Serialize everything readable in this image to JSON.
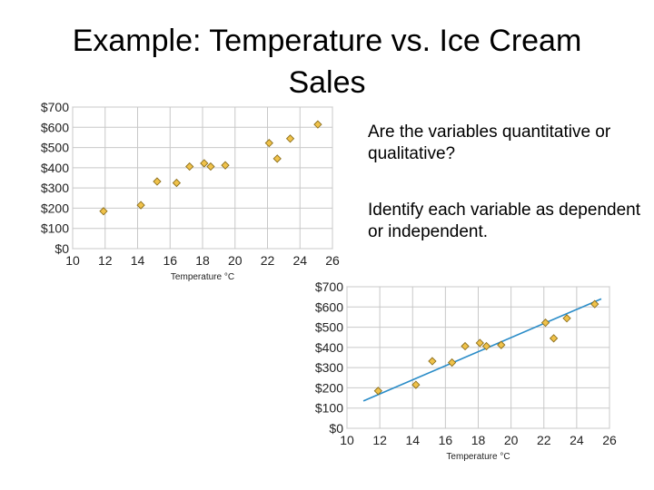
{
  "slide": {
    "title": "Example: Temperature vs. Ice Cream Sales",
    "question1": "Are the variables quantitative or qualitative?",
    "question2": "Identify each variable as dependent or independent."
  },
  "colors": {
    "point_fill": "#f0c24a",
    "point_stroke": "#8a6d1a",
    "grid": "#c8c8c8",
    "trendline": "#2a8cc8"
  },
  "chart_data": [
    {
      "type": "scatter",
      "title": "",
      "xlabel": "Temperature °C",
      "ylabel": "",
      "xlim": [
        10,
        26
      ],
      "ylim": [
        0,
        700
      ],
      "x_ticks": [
        10,
        12,
        14,
        16,
        18,
        20,
        22,
        24,
        26
      ],
      "y_ticks": [
        0,
        100,
        200,
        300,
        400,
        500,
        600,
        700
      ],
      "x_tick_labels": [
        "10",
        "12",
        "14",
        "16",
        "18",
        "20",
        "22",
        "24",
        "26"
      ],
      "y_tick_labels": [
        "$0",
        "$100",
        "$200",
        "$300",
        "$400",
        "$500",
        "$600",
        "$700"
      ],
      "grid": true,
      "trendline": false,
      "points": [
        {
          "x": 11.9,
          "y": 185
        },
        {
          "x": 14.2,
          "y": 215
        },
        {
          "x": 15.2,
          "y": 332
        },
        {
          "x": 16.4,
          "y": 325
        },
        {
          "x": 17.2,
          "y": 406
        },
        {
          "x": 18.1,
          "y": 422
        },
        {
          "x": 18.5,
          "y": 406
        },
        {
          "x": 19.4,
          "y": 412
        },
        {
          "x": 22.1,
          "y": 522
        },
        {
          "x": 22.6,
          "y": 445
        },
        {
          "x": 23.4,
          "y": 544
        },
        {
          "x": 25.1,
          "y": 614
        }
      ]
    },
    {
      "type": "scatter",
      "title": "",
      "xlabel": "Temperature °C",
      "ylabel": "",
      "xlim": [
        10,
        26
      ],
      "ylim": [
        0,
        700
      ],
      "x_ticks": [
        10,
        12,
        14,
        16,
        18,
        20,
        22,
        24,
        26
      ],
      "y_ticks": [
        0,
        100,
        200,
        300,
        400,
        500,
        600,
        700
      ],
      "x_tick_labels": [
        "10",
        "12",
        "14",
        "16",
        "18",
        "20",
        "22",
        "24",
        "26"
      ],
      "y_tick_labels": [
        "$0",
        "$100",
        "$200",
        "$300",
        "$400",
        "$500",
        "$600",
        "$700"
      ],
      "grid": true,
      "trendline": true,
      "trendline_points": [
        {
          "x": 11.0,
          "y": 135
        },
        {
          "x": 25.5,
          "y": 640
        }
      ],
      "points": [
        {
          "x": 11.9,
          "y": 185
        },
        {
          "x": 14.2,
          "y": 215
        },
        {
          "x": 15.2,
          "y": 332
        },
        {
          "x": 16.4,
          "y": 325
        },
        {
          "x": 17.2,
          "y": 406
        },
        {
          "x": 18.1,
          "y": 422
        },
        {
          "x": 18.5,
          "y": 406
        },
        {
          "x": 19.4,
          "y": 412
        },
        {
          "x": 22.1,
          "y": 522
        },
        {
          "x": 22.6,
          "y": 445
        },
        {
          "x": 23.4,
          "y": 544
        },
        {
          "x": 25.1,
          "y": 614
        }
      ]
    }
  ]
}
